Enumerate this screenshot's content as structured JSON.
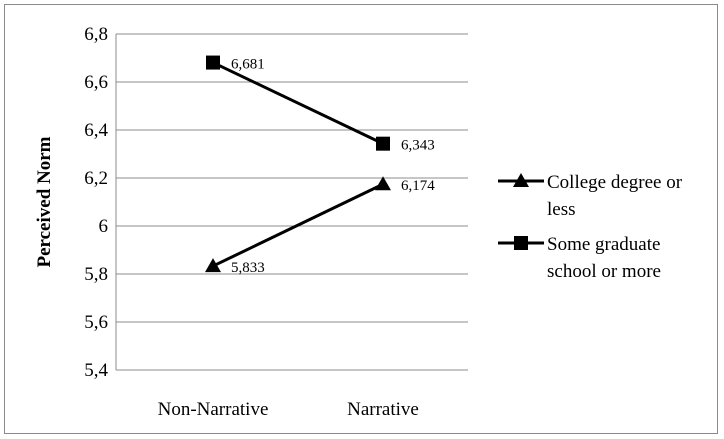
{
  "chart_data": {
    "type": "line",
    "title": "",
    "xlabel": "",
    "ylabel": "Perceived Norm",
    "categories": [
      "Non-Narrative",
      "Narrative"
    ],
    "ylim": [
      5.4,
      6.8
    ],
    "yticks": [
      5.4,
      5.6,
      5.8,
      6.0,
      6.2,
      6.4,
      6.6,
      6.8
    ],
    "ytick_labels": [
      "5,4",
      "5,6",
      "5,8",
      "6",
      "6,2",
      "6,4",
      "6,6",
      "6,8"
    ],
    "grid": true,
    "legend_position": "right",
    "series": [
      {
        "name": "College degree or less",
        "legend_lines": [
          "College degree or",
          "less"
        ],
        "marker": "triangle",
        "values": [
          5.833,
          6.174
        ],
        "labels": [
          "5,833",
          "6,174"
        ],
        "color": "#000000"
      },
      {
        "name": "Some graduate school or more",
        "legend_lines": [
          "Some graduate",
          "school or more"
        ],
        "marker": "square",
        "values": [
          6.681,
          6.343
        ],
        "labels": [
          "6,681",
          "6,343"
        ],
        "color": "#000000"
      }
    ]
  }
}
